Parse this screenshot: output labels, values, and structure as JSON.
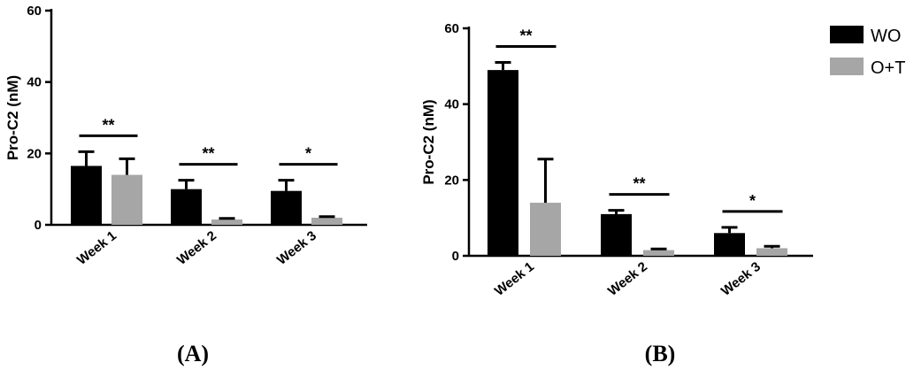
{
  "colors": {
    "WO": "#000000",
    "O+T": "#a6a6a6"
  },
  "legend": [
    {
      "name": "WO",
      "color": "#000000"
    },
    {
      "name": "O+T",
      "color": "#a6a6a6"
    }
  ],
  "chart_data": [
    {
      "panel": "(A)",
      "type": "bar",
      "ylabel": "Pro-C2 (nM)",
      "ylim": [
        0,
        60
      ],
      "yticks": [
        0,
        20,
        40,
        60
      ],
      "categories": [
        "Week 1",
        "Week 2",
        "Week 3"
      ],
      "series": [
        {
          "name": "WO",
          "values": [
            16.5,
            10,
            9.5
          ],
          "errors": [
            4,
            2.5,
            3
          ]
        },
        {
          "name": "O+T",
          "values": [
            14,
            1.5,
            2
          ],
          "errors": [
            4.5,
            0.3,
            0.3
          ]
        }
      ],
      "significance": [
        "**",
        "**",
        "*"
      ]
    },
    {
      "panel": "(B)",
      "type": "bar",
      "ylabel": "Pro-C2 (nM)",
      "ylim": [
        0,
        60
      ],
      "yticks": [
        0,
        20,
        40,
        60
      ],
      "categories": [
        "Week 1",
        "Week 2",
        "Week 3"
      ],
      "series": [
        {
          "name": "WO",
          "values": [
            49,
            11,
            6
          ],
          "errors": [
            2,
            1,
            1.5
          ]
        },
        {
          "name": "O+T",
          "values": [
            14,
            1.5,
            2
          ],
          "errors": [
            11.5,
            0.3,
            0.5
          ]
        }
      ],
      "significance": [
        "**",
        "**",
        "*"
      ]
    }
  ]
}
